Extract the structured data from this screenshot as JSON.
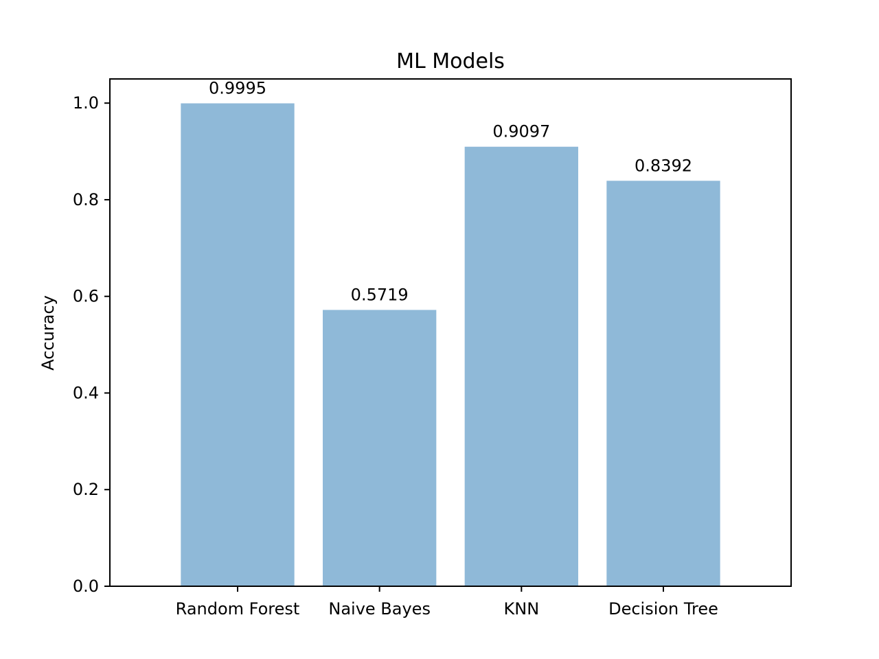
{
  "chart_data": {
    "type": "bar",
    "title": "ML Models",
    "xlabel": "",
    "ylabel": "Accuracy",
    "categories": [
      "Random Forest",
      "Naive Bayes",
      "KNN",
      "Decision Tree"
    ],
    "values": [
      0.9995,
      0.5719,
      0.9097,
      0.8392
    ],
    "data_labels": [
      "0.9995",
      "0.5719",
      "0.9097",
      "0.8392"
    ],
    "ylim": [
      0,
      1.05
    ],
    "yticks": [
      0.0,
      0.2,
      0.4,
      0.6,
      0.8,
      1.0
    ],
    "ytick_labels": [
      "0.0",
      "0.2",
      "0.4",
      "0.6",
      "0.8",
      "1.0"
    ],
    "grid": false,
    "legend": "none",
    "colors": {
      "bar": "#8fb9d8",
      "axes": "#000000",
      "background": "#ffffff"
    }
  }
}
